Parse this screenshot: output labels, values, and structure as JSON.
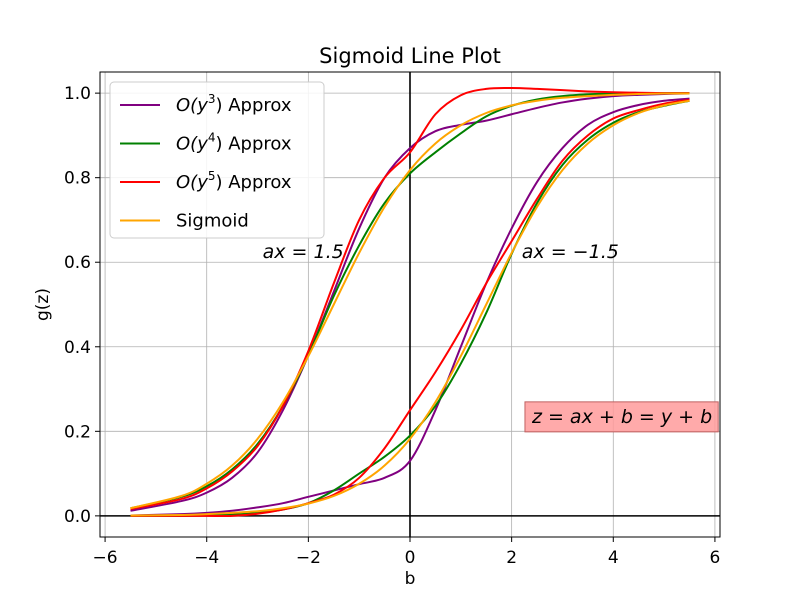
{
  "chart_data": {
    "type": "line",
    "title": "Sigmoid Line Plot",
    "xlabel": "b",
    "ylabel": "g(z)",
    "xlim": [
      -6.1,
      6.1
    ],
    "ylim": [
      -0.05,
      1.05
    ],
    "xticks": [
      -6,
      -4,
      -2,
      0,
      2,
      4,
      6
    ],
    "xtick_labels": [
      "−6",
      "−4",
      "−2",
      "0",
      "2",
      "4",
      "6"
    ],
    "yticks": [
      0.0,
      0.2,
      0.4,
      0.6,
      0.8,
      1.0
    ],
    "ytick_labels": [
      "0.0",
      "0.2",
      "0.4",
      "0.6",
      "0.8",
      "1.0"
    ],
    "grid": true,
    "legend_position": "top-left",
    "colors": {
      "O(y^3) Approx": "#800080",
      "O(y^4) Approx": "#008000",
      "O(y^5) Approx": "#ff0000",
      "Sigmoid": "#ffa500",
      "annotation_box": "#ff9b9b"
    },
    "legend": [
      {
        "base": "O(y",
        "sup": "3",
        "suffix": ") Approx",
        "color": "#800080"
      },
      {
        "base": "O(y",
        "sup": "4",
        "suffix": ") Approx",
        "color": "#008000"
      },
      {
        "base": "O(y",
        "sup": "5",
        "suffix": ") Approx",
        "color": "#ff0000"
      },
      {
        "base": "Sigmoid",
        "sup": "",
        "suffix": "",
        "color": "#ffa500"
      }
    ],
    "groups": [
      {
        "label": "ax = 1.5",
        "series": [
          {
            "name": "O(y^3) Approx",
            "x": [
              -5.5,
              -4.5,
              -4,
              -3.5,
              -3,
              -2.5,
              -2,
              -1.5,
              -1,
              -0.5,
              0,
              0.5,
              1,
              1.5,
              2,
              2.5,
              3,
              3.5,
              4,
              4.5,
              5,
              5.5
            ],
            "y": [
              0.012,
              0.035,
              0.055,
              0.09,
              0.15,
              0.25,
              0.38,
              0.53,
              0.68,
              0.8,
              0.87,
              0.91,
              0.925,
              0.935,
              0.95,
              0.965,
              0.978,
              0.987,
              0.993,
              0.996,
              0.998,
              0.999
            ]
          },
          {
            "name": "O(y^4) Approx",
            "x": [
              -5.5,
              -4.5,
              -4,
              -3.5,
              -3,
              -2.5,
              -2,
              -1.5,
              -1,
              -0.5,
              0,
              0.5,
              1,
              1.5,
              2,
              2.5,
              3,
              3.5,
              4,
              4.5,
              5,
              5.5
            ],
            "y": [
              0.018,
              0.045,
              0.07,
              0.11,
              0.17,
              0.26,
              0.38,
              0.52,
              0.64,
              0.74,
              0.81,
              0.86,
              0.905,
              0.945,
              0.97,
              0.985,
              0.993,
              0.997,
              0.999,
              1.0,
              1.0,
              1.0
            ]
          },
          {
            "name": "O(y^5) Approx",
            "x": [
              -5.5,
              -4.5,
              -4,
              -3.5,
              -3,
              -2.5,
              -2,
              -1.5,
              -1,
              -0.5,
              0,
              0.5,
              1,
              1.5,
              2,
              2.5,
              3,
              3.5,
              4,
              4.5,
              5,
              5.5
            ],
            "y": [
              0.016,
              0.04,
              0.065,
              0.105,
              0.165,
              0.26,
              0.39,
              0.55,
              0.7,
              0.8,
              0.86,
              0.95,
              0.995,
              1.01,
              1.012,
              1.01,
              1.007,
              1.004,
              1.002,
              1.001,
              1.0,
              1.0
            ]
          },
          {
            "name": "Sigmoid",
            "x": [
              -5.5,
              -4.5,
              -4,
              -3.5,
              -3,
              -2.5,
              -2,
              -1.5,
              -1,
              -0.5,
              0,
              0.5,
              1,
              1.5,
              2,
              2.5,
              3,
              3.5,
              4,
              4.5,
              5,
              5.5
            ],
            "y": [
              0.018,
              0.047,
              0.076,
              0.119,
              0.182,
              0.269,
              0.378,
              0.5,
              0.622,
              0.731,
              0.818,
              0.881,
              0.924,
              0.953,
              0.971,
              0.982,
              0.989,
              0.993,
              0.996,
              0.998,
              0.999,
              0.999
            ]
          }
        ]
      },
      {
        "label": "ax = −1.5",
        "series": [
          {
            "name": "O(y^3) Approx",
            "x": [
              -5.5,
              -4.5,
              -4,
              -3.5,
              -3,
              -2.5,
              -2,
              -1.5,
              -1,
              -0.5,
              0,
              0.5,
              1,
              1.5,
              2,
              2.5,
              3,
              3.5,
              4,
              4.5,
              5,
              5.5
            ],
            "y": [
              0.001,
              0.004,
              0.007,
              0.012,
              0.02,
              0.03,
              0.045,
              0.06,
              0.075,
              0.09,
              0.13,
              0.25,
              0.4,
              0.55,
              0.68,
              0.79,
              0.87,
              0.925,
              0.955,
              0.972,
              0.982,
              0.987
            ]
          },
          {
            "name": "O(y^4) Approx",
            "x": [
              -5.5,
              -4.5,
              -4,
              -3.5,
              -3,
              -2.5,
              -2,
              -1.5,
              -1,
              -0.5,
              0,
              0.5,
              1,
              1.5,
              2,
              2.5,
              3,
              3.5,
              4,
              4.5,
              5,
              5.5
            ],
            "y": [
              0.0,
              0.0,
              0.001,
              0.003,
              0.007,
              0.015,
              0.03,
              0.06,
              0.1,
              0.14,
              0.19,
              0.26,
              0.36,
              0.48,
              0.62,
              0.74,
              0.83,
              0.89,
              0.93,
              0.955,
              0.97,
              0.982
            ]
          },
          {
            "name": "O(y^5) Approx",
            "x": [
              -5.5,
              -4.5,
              -4,
              -3.5,
              -3,
              -2.5,
              -2,
              -1.5,
              -1,
              -0.5,
              0,
              0.5,
              1,
              1.5,
              2,
              2.5,
              3,
              3.5,
              4,
              4.5,
              5,
              5.5
            ],
            "y": [
              0.0,
              0.0,
              0.0,
              0.0,
              0.005,
              0.015,
              0.03,
              0.05,
              0.09,
              0.16,
              0.25,
              0.34,
              0.44,
              0.55,
              0.65,
              0.75,
              0.84,
              0.9,
              0.94,
              0.96,
              0.975,
              0.984
            ]
          },
          {
            "name": "Sigmoid",
            "x": [
              -5.5,
              -4.5,
              -4,
              -3.5,
              -3,
              -2.5,
              -2,
              -1.5,
              -1,
              -0.5,
              0,
              0.5,
              1,
              1.5,
              2,
              2.5,
              3,
              3.5,
              4,
              4.5,
              5,
              5.5
            ],
            "y": [
              0.001,
              0.002,
              0.004,
              0.007,
              0.011,
              0.018,
              0.029,
              0.047,
              0.076,
              0.119,
              0.182,
              0.269,
              0.378,
              0.5,
              0.622,
              0.731,
              0.818,
              0.881,
              0.924,
              0.953,
              0.971,
              0.982
            ]
          }
        ]
      }
    ],
    "annotations": [
      {
        "text_base": "ax",
        "text_rest": " = 1.5",
        "x": -2.9,
        "y": 0.61,
        "boxed": false
      },
      {
        "text_base": "ax",
        "text_rest": " = −1.5",
        "x": 2.2,
        "y": 0.61,
        "boxed": false
      },
      {
        "text_base": "z",
        "text_rest": " = ax + b = y + b",
        "x": 2.4,
        "y": 0.22,
        "boxed": true
      }
    ]
  }
}
